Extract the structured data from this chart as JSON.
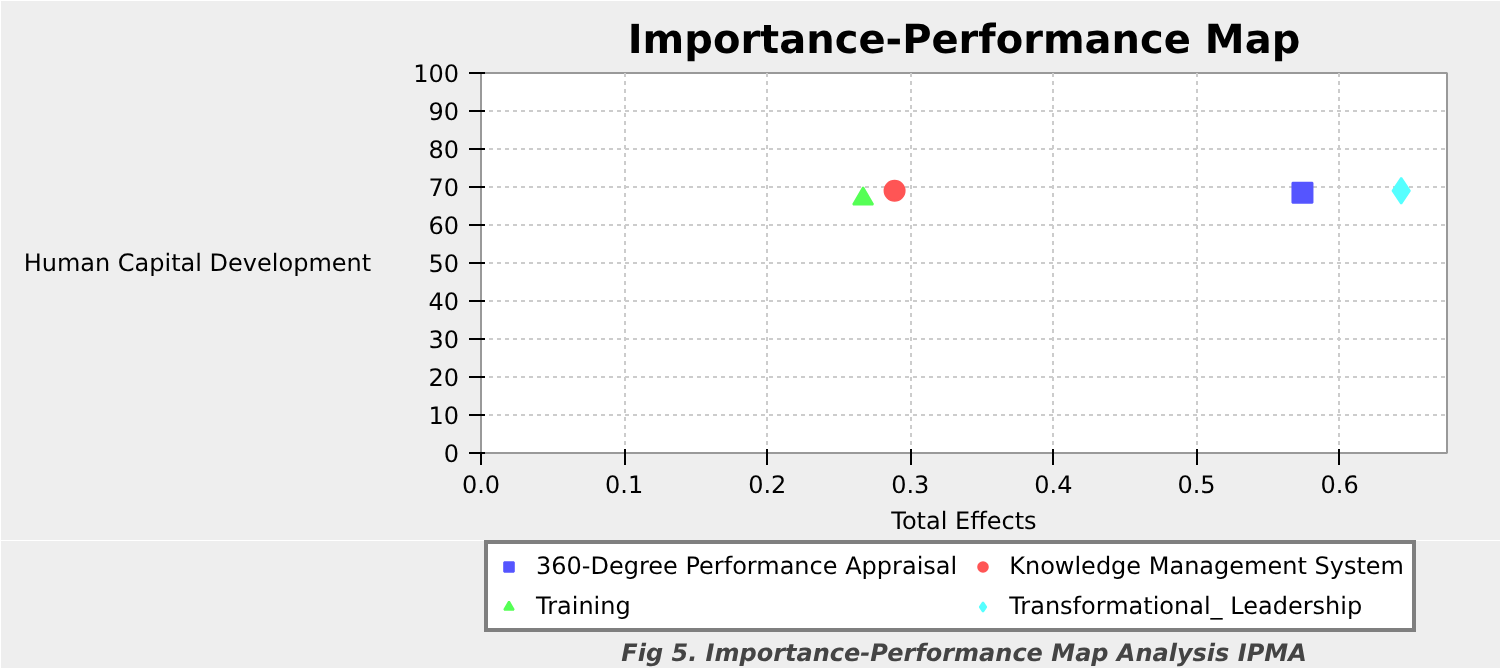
{
  "chart_data": {
    "type": "scatter",
    "title": "Importance-Performance Map",
    "xlabel": "Total Effects",
    "ylabel": "Human Capital Development",
    "xlim": [
      0,
      0.675
    ],
    "xticks": [
      {
        "value": 0,
        "label": "0.0"
      },
      0.1,
      0.2,
      0.3,
      0.4,
      0.5,
      0.6
    ],
    "ylim": [
      0,
      100
    ],
    "yticks": [
      0,
      10,
      20,
      30,
      40,
      50,
      60,
      70,
      80,
      90,
      100
    ],
    "grid": true,
    "legend": "bottom",
    "series": [
      {
        "name": "360-Degree Performance Appraisal",
        "color": "#5555ff",
        "marker": "square",
        "x": [
          0.574
        ],
        "values": [
          68.5
        ]
      },
      {
        "name": "Knowledge Management System",
        "color": "#ff5555",
        "marker": "circle",
        "x": [
          0.289
        ],
        "values": [
          69.0
        ]
      },
      {
        "name": "Training",
        "color": "#55ff55",
        "marker": "triangle",
        "x": [
          0.267
        ],
        "values": [
          66.9
        ]
      },
      {
        "name": "Transformational_ Leadership",
        "color": "#55ffff",
        "marker": "diamond",
        "x": [
          0.643
        ],
        "values": [
          69.0
        ]
      }
    ],
    "annotations": [
      "Fig 5. Importance-Performance Map Analysis IPMA"
    ]
  }
}
